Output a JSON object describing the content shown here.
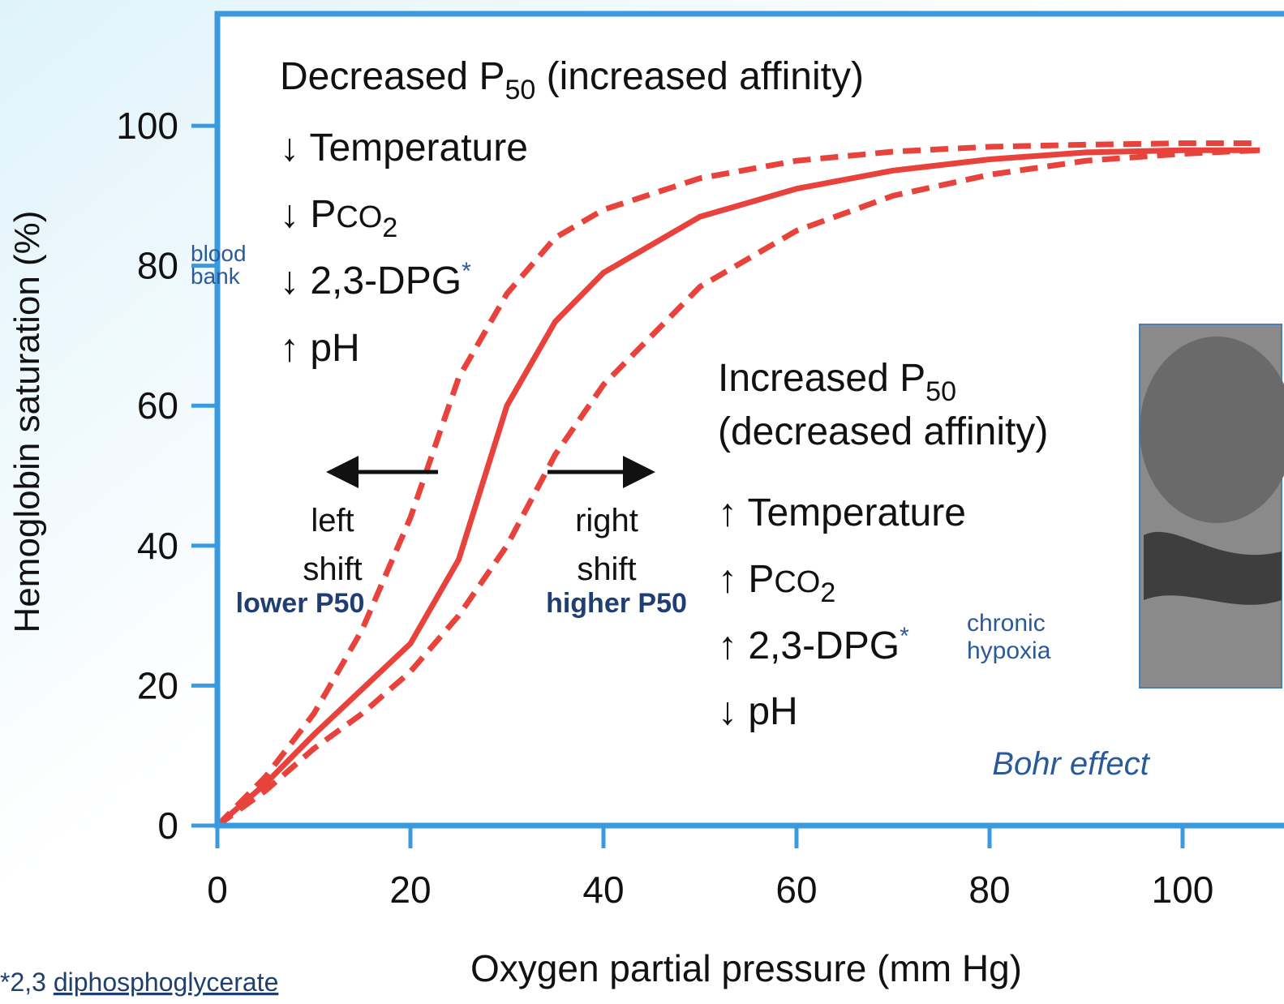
{
  "chart_data": {
    "type": "line",
    "x_label": "Oxygen partial pressure (mm Hg)",
    "y_label": "Hemoglobin saturation (%)",
    "xlim": [
      0,
      108.7
    ],
    "ylim": [
      0,
      116
    ],
    "xticks": [
      0,
      20,
      40,
      60,
      80,
      100
    ],
    "yticks": [
      0,
      20,
      40,
      60,
      80,
      100
    ],
    "x": [
      0,
      5,
      10,
      15,
      20,
      25,
      30,
      35,
      40,
      50,
      60,
      70,
      80,
      90,
      100,
      108
    ],
    "series": [
      {
        "color": "#e8423c",
        "dashed": false,
        "values": [
          0,
          6,
          13,
          19.5,
          26,
          38,
          60,
          72,
          79,
          87,
          91,
          93.6,
          95.2,
          96.2,
          96.5,
          96.5
        ]
      },
      {
        "color": "#e8423c",
        "dashed": true,
        "values": [
          0,
          7,
          16,
          28,
          44,
          64,
          76,
          84,
          88,
          92.5,
          95,
          96.3,
          97,
          97.3,
          97.5,
          97.5
        ]
      },
      {
        "color": "#e8423c",
        "dashed": true,
        "values": [
          0,
          5,
          11,
          16,
          22,
          30,
          40,
          53,
          63,
          77,
          85,
          90,
          93,
          95,
          96,
          96.5
        ]
      }
    ],
    "annotations": {
      "left": {
        "title": [
          "Decreased P",
          "50",
          " (increased affinity)"
        ],
        "items": [
          [
            "↓ Temperature"
          ],
          [
            "↓ P",
            "CO",
            "2"
          ],
          [
            "↓ 2,3-DPG",
            "*"
          ],
          [
            "↑ pH"
          ]
        ],
        "note": [
          "blood",
          "bank"
        ],
        "shift": [
          "left",
          "shift",
          "lower P50"
        ]
      },
      "right": {
        "title": [
          "Increased P",
          "50",
          "(decreased affinity)"
        ],
        "items": [
          [
            "↑ Temperature"
          ],
          [
            "↑ P",
            "CO",
            "2"
          ],
          [
            "↑ 2,3-DPG",
            "*"
          ],
          [
            "↓ pH"
          ]
        ],
        "note": [
          "chronic",
          "hypoxia"
        ],
        "shift": [
          "right",
          "shift",
          "higher P50"
        ]
      },
      "bohr": "Bohr effect",
      "footnote": [
        "*2,3 ",
        "diphosphoglycerate"
      ]
    }
  }
}
